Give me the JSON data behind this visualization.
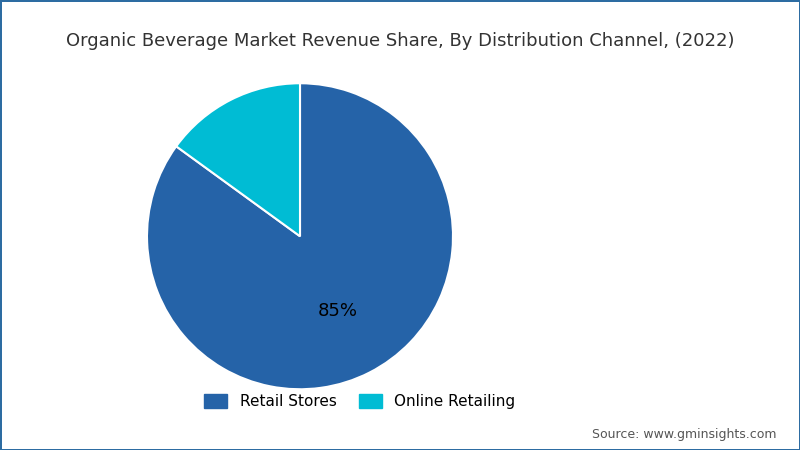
{
  "title": "Organic Beverage Market Revenue Share, By Distribution Channel, (2022)",
  "slices": [
    85,
    15
  ],
  "labels": [
    "Retail Stores",
    "Online Retailing"
  ],
  "colors": [
    "#2563a8",
    "#00bcd4"
  ],
  "autopct_label": "85%",
  "background_color": "#ffffff",
  "border_color": "#2d6ca2",
  "title_color": "#333333",
  "source_text": "Source: www.gminsights.com",
  "title_fontsize": 13,
  "legend_fontsize": 11,
  "source_fontsize": 9,
  "startangle": 90
}
